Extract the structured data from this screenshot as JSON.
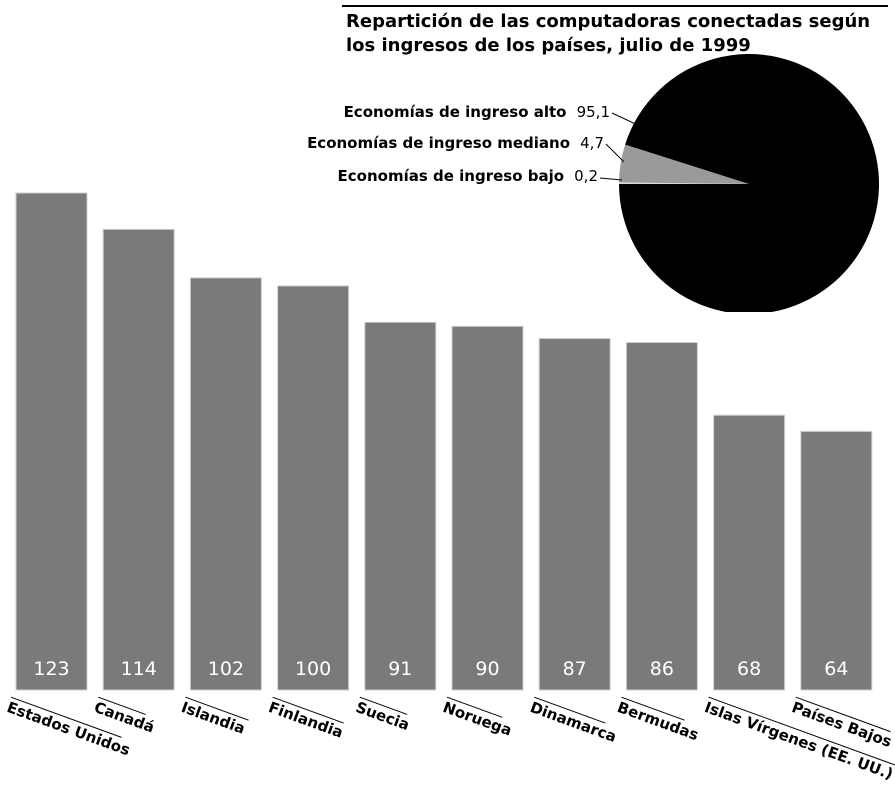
{
  "colors": {
    "bar_fill": "#7a7a7a",
    "bar_edge": "#cfcfcf",
    "bar_value_text": "#ffffff",
    "slice_high": "#000000",
    "slice_middle": "#9a9a9a",
    "slice_low": "#d9d9d9",
    "text": "#000000"
  },
  "chart_data": [
    {
      "type": "bar",
      "categories": [
        "Estados Unidos",
        "Canadá",
        "Islandia",
        "Finlandia",
        "Suecia",
        "Noruega",
        "Dinamarca",
        "Bermudas",
        "Islas Vírgenes (EE. UU.)",
        "Países Bajos"
      ],
      "values": [
        123,
        114,
        102,
        100,
        91,
        90,
        87,
        86,
        68,
        64
      ],
      "value_labels": [
        "123",
        "114",
        "102",
        "100",
        "91",
        "90",
        "87",
        "86",
        "68",
        "64"
      ],
      "title": "",
      "xlabel": "",
      "ylabel": "",
      "ylim": [
        0,
        123
      ],
      "grid": false,
      "label_rotation": "slanted"
    },
    {
      "type": "pie",
      "title_lines": [
        "Repartición de las computadoras conectadas según",
        "los ingresos de los países, julio de 1999"
      ],
      "slices": [
        {
          "label": "Economías de ingreso alto",
          "value": 95.1,
          "value_text": "95,1"
        },
        {
          "label": "Economías de ingreso mediano",
          "value": 4.7,
          "value_text": "4,7"
        },
        {
          "label": "Economías de ingreso bajo",
          "value": 0.2,
          "value_text": "0,2"
        }
      ],
      "pie_shape": "clipped-bottom"
    }
  ]
}
